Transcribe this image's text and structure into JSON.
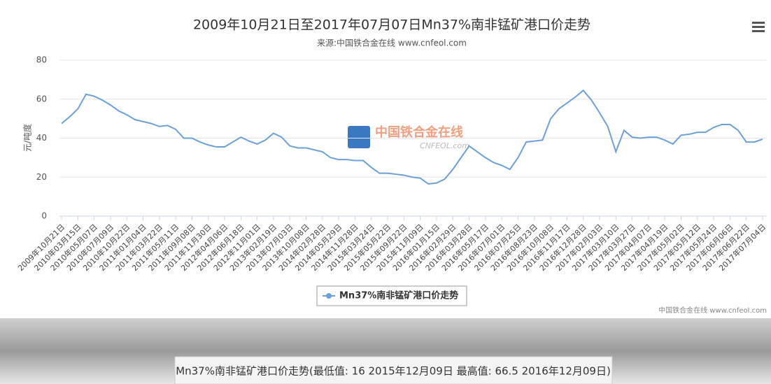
{
  "chart_data": {
    "type": "line",
    "title": "2009年10月21日至2017年07月07日Mn37%南非锰矿港口价走势",
    "subtitle": "来源:中国铁合金在线 www.cnfeol.com",
    "y_label": "元/吨度",
    "watermark": "中国铁合金在线",
    "watermark_sub": "CNFEOL.com",
    "credit": "中国铁合金在线 www.cnfeol.com",
    "footer": "Mn37%南非锰矿港口价走势(最低值: 16 2015年12月09日 最高值: 66.5 2016年12月09日)",
    "ylim": [
      0,
      80
    ],
    "yticks": [
      0,
      20,
      40,
      60,
      80
    ],
    "grid": true,
    "legend": "bottom",
    "categories": [
      "2009年10月21日",
      null,
      "2010年03月15日",
      null,
      "2010年05月07日",
      null,
      "2010年07月09日",
      null,
      "2010年10月22日",
      null,
      "2011年01月04日",
      null,
      "2011年03月22日",
      null,
      "2011年05月11日",
      null,
      "2011年09月08日",
      null,
      "2011年11月30日",
      null,
      "2012年04月06日",
      null,
      "2012年06月18日",
      null,
      "2012年11月01日",
      null,
      "2013年02月19日",
      null,
      "2013年07月03日",
      null,
      "2013年10月08日",
      null,
      "2014年02月28日",
      null,
      "2014年05月29日",
      null,
      "2014年11月28日",
      null,
      "2015年03月24日",
      null,
      "2015年05月22日",
      null,
      "2015年09月22日",
      null,
      "2015年11月09日",
      null,
      "2016年01月15日",
      null,
      "2016年02月29日",
      null,
      "2016年03月28日",
      null,
      "2016年05月17日",
      null,
      "2016年07月01日",
      null,
      "2016年07月25日",
      null,
      "2016年08月23日",
      null,
      "2016年10月08日",
      null,
      "2016年11月17日",
      null,
      "2016年12月28日",
      null,
      "2017年02月03日",
      null,
      "2017年03月10日",
      null,
      "2017年03月27日",
      null,
      "2017年04月07日",
      null,
      "2017年04月19日",
      null,
      "2017年05月02日",
      null,
      "2017年05月12日",
      null,
      "2017年05月24日",
      null,
      "2017年06月06日",
      null,
      "2017年06月22日",
      null,
      "2017年07月04日"
    ],
    "series": [
      {
        "name": "Mn37%南非锰矿港口价走势",
        "color": "#6ca0dc",
        "values": [
          47.5,
          51,
          55,
          62.5,
          61.5,
          59.5,
          57,
          54,
          52,
          49.5,
          48.5,
          47.5,
          46,
          46.5,
          44.5,
          40,
          40,
          38,
          36.5,
          35.5,
          35.5,
          38,
          40.5,
          38.5,
          37,
          39,
          42.5,
          40.5,
          36,
          35,
          35,
          34,
          33,
          30,
          29,
          29,
          28.5,
          28.5,
          25,
          22,
          22,
          21.5,
          21,
          20,
          19.5,
          16.5,
          17,
          19,
          24,
          30,
          36,
          33,
          30,
          27.5,
          26,
          24,
          30,
          38,
          38.5,
          39,
          50,
          55,
          58,
          61,
          64.5,
          59.5,
          53,
          46,
          33,
          44,
          40.5,
          40,
          40.5,
          40.5,
          39,
          37,
          41.5,
          42,
          43,
          43,
          45.5,
          47,
          47,
          44,
          38,
          38,
          39.5
        ]
      }
    ]
  }
}
